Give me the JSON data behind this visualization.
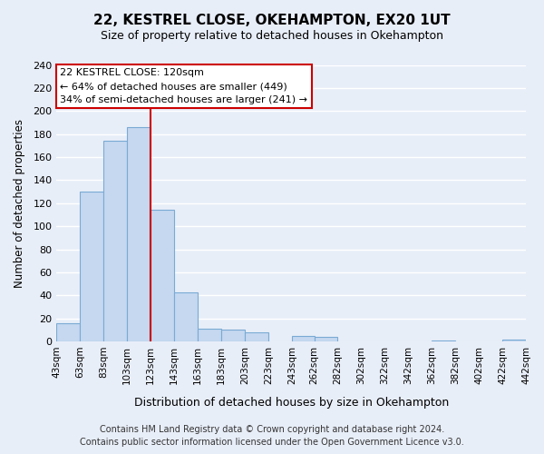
{
  "title": "22, KESTREL CLOSE, OKEHAMPTON, EX20 1UT",
  "subtitle": "Size of property relative to detached houses in Okehampton",
  "xlabel": "Distribution of detached houses by size in Okehampton",
  "ylabel": "Number of detached properties",
  "bar_lefts": [
    43,
    63,
    83,
    103,
    123,
    143,
    163,
    183,
    203,
    223,
    243,
    262,
    282,
    302,
    322,
    342,
    362,
    382,
    402,
    422
  ],
  "bar_rights": [
    63,
    83,
    103,
    123,
    143,
    163,
    183,
    203,
    223,
    243,
    262,
    282,
    302,
    322,
    342,
    362,
    382,
    402,
    422,
    442
  ],
  "bar_heights": [
    16,
    130,
    174,
    186,
    114,
    43,
    11,
    10,
    8,
    0,
    5,
    4,
    0,
    0,
    0,
    0,
    1,
    0,
    0,
    2
  ],
  "bar_facecolor": "#c5d8f0",
  "bar_edgecolor": "#7aaad4",
  "property_line_x": 123,
  "property_line_color": "#cc0000",
  "ylim": [
    0,
    240
  ],
  "yticks": [
    0,
    20,
    40,
    60,
    80,
    100,
    120,
    140,
    160,
    180,
    200,
    220,
    240
  ],
  "xtick_positions": [
    43,
    63,
    83,
    103,
    123,
    143,
    163,
    183,
    203,
    223,
    243,
    262,
    282,
    302,
    322,
    342,
    362,
    382,
    402,
    422,
    442
  ],
  "xtick_labels": [
    "43sqm",
    "63sqm",
    "83sqm",
    "103sqm",
    "123sqm",
    "143sqm",
    "163sqm",
    "183sqm",
    "203sqm",
    "223sqm",
    "243sqm",
    "262sqm",
    "282sqm",
    "302sqm",
    "322sqm",
    "342sqm",
    "362sqm",
    "382sqm",
    "402sqm",
    "422sqm",
    "442sqm"
  ],
  "xlim": [
    43,
    442
  ],
  "annotation_title": "22 KESTREL CLOSE: 120sqm",
  "annotation_line1": "← 64% of detached houses are smaller (449)",
  "annotation_line2": "34% of semi-detached houses are larger (241) →",
  "annotation_box_facecolor": "#ffffff",
  "annotation_box_edgecolor": "#cc0000",
  "footnote1": "Contains HM Land Registry data © Crown copyright and database right 2024.",
  "footnote2": "Contains public sector information licensed under the Open Government Licence v3.0.",
  "background_color": "#e8eef8",
  "grid_color": "#ffffff",
  "grid_linewidth": 1.0
}
